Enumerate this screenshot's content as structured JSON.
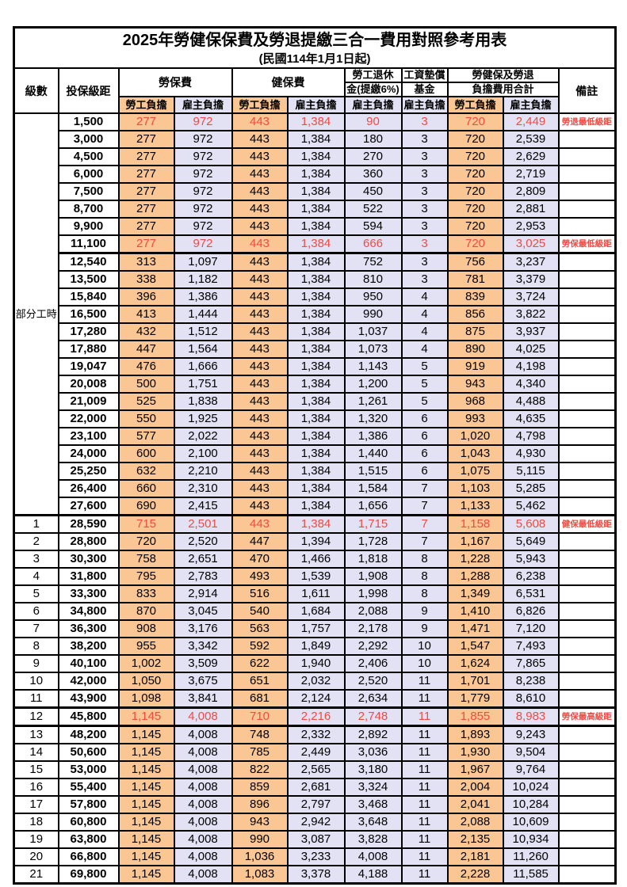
{
  "title": "2025年勞健保保費及勞退提繳三合一費用對照參考用表",
  "subtitle": "(民國114年1月1日起)",
  "header": {
    "level": "級數",
    "bracket": "投保級距",
    "labor": "勞保費",
    "health": "健保費",
    "pension_top": "勞工退休",
    "pension_bottom": "金(提繳6%)",
    "fund_top": "工資墊償",
    "fund_bottom": "基金",
    "total_top": "勞健保及勞退",
    "total_bottom": "負擔費用合計",
    "remark": "備註",
    "employee": "勞工負擔",
    "employer": "雇主負擔"
  },
  "part_time": {
    "label": "部分工時",
    "rowspan": 23
  },
  "colors": {
    "employee_bg": "#FAC693",
    "employer_bg": "#E2E2F4",
    "highlight_text": "#EE4B44",
    "border": "#000000"
  },
  "rows": [
    {
      "level": "",
      "bracket": "1,500",
      "li_emp": "277",
      "li_er": "972",
      "hi_emp": "443",
      "hi_er": "1,384",
      "pen": "90",
      "fund": "3",
      "tot_emp": "720",
      "tot_er": "2,449",
      "note": "勞退最低級距",
      "red": true
    },
    {
      "level": "",
      "bracket": "3,000",
      "li_emp": "277",
      "li_er": "972",
      "hi_emp": "443",
      "hi_er": "1,384",
      "pen": "180",
      "fund": "3",
      "tot_emp": "720",
      "tot_er": "2,539",
      "note": ""
    },
    {
      "level": "",
      "bracket": "4,500",
      "li_emp": "277",
      "li_er": "972",
      "hi_emp": "443",
      "hi_er": "1,384",
      "pen": "270",
      "fund": "3",
      "tot_emp": "720",
      "tot_er": "2,629",
      "note": ""
    },
    {
      "level": "",
      "bracket": "6,000",
      "li_emp": "277",
      "li_er": "972",
      "hi_emp": "443",
      "hi_er": "1,384",
      "pen": "360",
      "fund": "3",
      "tot_emp": "720",
      "tot_er": "2,719",
      "note": ""
    },
    {
      "level": "",
      "bracket": "7,500",
      "li_emp": "277",
      "li_er": "972",
      "hi_emp": "443",
      "hi_er": "1,384",
      "pen": "450",
      "fund": "3",
      "tot_emp": "720",
      "tot_er": "2,809",
      "note": ""
    },
    {
      "level": "",
      "bracket": "8,700",
      "li_emp": "277",
      "li_er": "972",
      "hi_emp": "443",
      "hi_er": "1,384",
      "pen": "522",
      "fund": "3",
      "tot_emp": "720",
      "tot_er": "2,881",
      "note": ""
    },
    {
      "level": "",
      "bracket": "9,900",
      "li_emp": "277",
      "li_er": "972",
      "hi_emp": "443",
      "hi_er": "1,384",
      "pen": "594",
      "fund": "3",
      "tot_emp": "720",
      "tot_er": "2,953",
      "note": ""
    },
    {
      "level": "",
      "bracket": "11,100",
      "li_emp": "277",
      "li_er": "972",
      "hi_emp": "443",
      "hi_er": "1,384",
      "pen": "666",
      "fund": "3",
      "tot_emp": "720",
      "tot_er": "3,025",
      "note": "勞保最低級距",
      "red": true,
      "bb": true
    },
    {
      "level": "",
      "bracket": "12,540",
      "li_emp": "313",
      "li_er": "1,097",
      "hi_emp": "443",
      "hi_er": "1,384",
      "pen": "752",
      "fund": "3",
      "tot_emp": "756",
      "tot_er": "3,237",
      "note": ""
    },
    {
      "level": "",
      "bracket": "13,500",
      "li_emp": "338",
      "li_er": "1,182",
      "hi_emp": "443",
      "hi_er": "1,384",
      "pen": "810",
      "fund": "3",
      "tot_emp": "781",
      "tot_er": "3,379",
      "note": ""
    },
    {
      "level": "",
      "bracket": "15,840",
      "li_emp": "396",
      "li_er": "1,386",
      "hi_emp": "443",
      "hi_er": "1,384",
      "pen": "950",
      "fund": "4",
      "tot_emp": "839",
      "tot_er": "3,724",
      "note": ""
    },
    {
      "level": "",
      "bracket": "16,500",
      "li_emp": "413",
      "li_er": "1,444",
      "hi_emp": "443",
      "hi_er": "1,384",
      "pen": "990",
      "fund": "4",
      "tot_emp": "856",
      "tot_er": "3,822",
      "note": ""
    },
    {
      "level": "",
      "bracket": "17,280",
      "li_emp": "432",
      "li_er": "1,512",
      "hi_emp": "443",
      "hi_er": "1,384",
      "pen": "1,037",
      "fund": "4",
      "tot_emp": "875",
      "tot_er": "3,937",
      "note": ""
    },
    {
      "level": "",
      "bracket": "17,880",
      "li_emp": "447",
      "li_er": "1,564",
      "hi_emp": "443",
      "hi_er": "1,384",
      "pen": "1,073",
      "fund": "4",
      "tot_emp": "890",
      "tot_er": "4,025",
      "note": ""
    },
    {
      "level": "",
      "bracket": "19,047",
      "li_emp": "476",
      "li_er": "1,666",
      "hi_emp": "443",
      "hi_er": "1,384",
      "pen": "1,143",
      "fund": "5",
      "tot_emp": "919",
      "tot_er": "4,198",
      "note": ""
    },
    {
      "level": "",
      "bracket": "20,008",
      "li_emp": "500",
      "li_er": "1,751",
      "hi_emp": "443",
      "hi_er": "1,384",
      "pen": "1,200",
      "fund": "5",
      "tot_emp": "943",
      "tot_er": "4,340",
      "note": ""
    },
    {
      "level": "",
      "bracket": "21,009",
      "li_emp": "525",
      "li_er": "1,838",
      "hi_emp": "443",
      "hi_er": "1,384",
      "pen": "1,261",
      "fund": "5",
      "tot_emp": "968",
      "tot_er": "4,488",
      "note": ""
    },
    {
      "level": "",
      "bracket": "22,000",
      "li_emp": "550",
      "li_er": "1,925",
      "hi_emp": "443",
      "hi_er": "1,384",
      "pen": "1,320",
      "fund": "6",
      "tot_emp": "993",
      "tot_er": "4,635",
      "note": ""
    },
    {
      "level": "",
      "bracket": "23,100",
      "li_emp": "577",
      "li_er": "2,022",
      "hi_emp": "443",
      "hi_er": "1,384",
      "pen": "1,386",
      "fund": "6",
      "tot_emp": "1,020",
      "tot_er": "4,798",
      "note": ""
    },
    {
      "level": "",
      "bracket": "24,000",
      "li_emp": "600",
      "li_er": "2,100",
      "hi_emp": "443",
      "hi_er": "1,384",
      "pen": "1,440",
      "fund": "6",
      "tot_emp": "1,043",
      "tot_er": "4,930",
      "note": ""
    },
    {
      "level": "",
      "bracket": "25,250",
      "li_emp": "632",
      "li_er": "2,210",
      "hi_emp": "443",
      "hi_er": "1,384",
      "pen": "1,515",
      "fund": "6",
      "tot_emp": "1,075",
      "tot_er": "5,115",
      "note": ""
    },
    {
      "level": "",
      "bracket": "26,400",
      "li_emp": "660",
      "li_er": "2,310",
      "hi_emp": "443",
      "hi_er": "1,384",
      "pen": "1,584",
      "fund": "7",
      "tot_emp": "1,103",
      "tot_er": "5,285",
      "note": ""
    },
    {
      "level": "",
      "bracket": "27,600",
      "li_emp": "690",
      "li_er": "2,415",
      "hi_emp": "443",
      "hi_er": "1,384",
      "pen": "1,656",
      "fund": "7",
      "tot_emp": "1,133",
      "tot_er": "5,462",
      "note": ""
    },
    {
      "level": "1",
      "bracket": "28,590",
      "li_emp": "715",
      "li_er": "2,501",
      "hi_emp": "443",
      "hi_er": "1,384",
      "pen": "1,715",
      "fund": "7",
      "tot_emp": "1,158",
      "tot_er": "5,608",
      "note": "健保最低級距",
      "red": true,
      "bt": true
    },
    {
      "level": "2",
      "bracket": "28,800",
      "li_emp": "720",
      "li_er": "2,520",
      "hi_emp": "447",
      "hi_er": "1,394",
      "pen": "1,728",
      "fund": "7",
      "tot_emp": "1,167",
      "tot_er": "5,649",
      "note": ""
    },
    {
      "level": "3",
      "bracket": "30,300",
      "li_emp": "758",
      "li_er": "2,651",
      "hi_emp": "470",
      "hi_er": "1,466",
      "pen": "1,818",
      "fund": "8",
      "tot_emp": "1,228",
      "tot_er": "5,943",
      "note": ""
    },
    {
      "level": "4",
      "bracket": "31,800",
      "li_emp": "795",
      "li_er": "2,783",
      "hi_emp": "493",
      "hi_er": "1,539",
      "pen": "1,908",
      "fund": "8",
      "tot_emp": "1,288",
      "tot_er": "6,238",
      "note": ""
    },
    {
      "level": "5",
      "bracket": "33,300",
      "li_emp": "833",
      "li_er": "2,914",
      "hi_emp": "516",
      "hi_er": "1,611",
      "pen": "1,998",
      "fund": "8",
      "tot_emp": "1,349",
      "tot_er": "6,531",
      "note": ""
    },
    {
      "level": "6",
      "bracket": "34,800",
      "li_emp": "870",
      "li_er": "3,045",
      "hi_emp": "540",
      "hi_er": "1,684",
      "pen": "2,088",
      "fund": "9",
      "tot_emp": "1,410",
      "tot_er": "6,826",
      "note": ""
    },
    {
      "level": "7",
      "bracket": "36,300",
      "li_emp": "908",
      "li_er": "3,176",
      "hi_emp": "563",
      "hi_er": "1,757",
      "pen": "2,178",
      "fund": "9",
      "tot_emp": "1,471",
      "tot_er": "7,120",
      "note": ""
    },
    {
      "level": "8",
      "bracket": "38,200",
      "li_emp": "955",
      "li_er": "3,342",
      "hi_emp": "592",
      "hi_er": "1,849",
      "pen": "2,292",
      "fund": "10",
      "tot_emp": "1,547",
      "tot_er": "7,493",
      "note": ""
    },
    {
      "level": "9",
      "bracket": "40,100",
      "li_emp": "1,002",
      "li_er": "3,509",
      "hi_emp": "622",
      "hi_er": "1,940",
      "pen": "2,406",
      "fund": "10",
      "tot_emp": "1,624",
      "tot_er": "7,865",
      "note": ""
    },
    {
      "level": "10",
      "bracket": "42,000",
      "li_emp": "1,050",
      "li_er": "3,675",
      "hi_emp": "651",
      "hi_er": "2,032",
      "pen": "2,520",
      "fund": "11",
      "tot_emp": "1,701",
      "tot_er": "8,238",
      "note": ""
    },
    {
      "level": "11",
      "bracket": "43,900",
      "li_emp": "1,098",
      "li_er": "3,841",
      "hi_emp": "681",
      "hi_er": "2,124",
      "pen": "2,634",
      "fund": "11",
      "tot_emp": "1,779",
      "tot_er": "8,610",
      "note": ""
    },
    {
      "level": "12",
      "bracket": "45,800",
      "li_emp": "1,145",
      "li_er": "4,008",
      "hi_emp": "710",
      "hi_er": "2,216",
      "pen": "2,748",
      "fund": "11",
      "tot_emp": "1,855",
      "tot_er": "8,983",
      "note": "勞保最高級距",
      "red": true,
      "bt": true,
      "bb": true
    },
    {
      "level": "13",
      "bracket": "48,200",
      "li_emp": "1,145",
      "li_er": "4,008",
      "hi_emp": "748",
      "hi_er": "2,332",
      "pen": "2,892",
      "fund": "11",
      "tot_emp": "1,893",
      "tot_er": "9,243",
      "note": ""
    },
    {
      "level": "14",
      "bracket": "50,600",
      "li_emp": "1,145",
      "li_er": "4,008",
      "hi_emp": "785",
      "hi_er": "2,449",
      "pen": "3,036",
      "fund": "11",
      "tot_emp": "1,930",
      "tot_er": "9,504",
      "note": ""
    },
    {
      "level": "15",
      "bracket": "53,000",
      "li_emp": "1,145",
      "li_er": "4,008",
      "hi_emp": "822",
      "hi_er": "2,565",
      "pen": "3,180",
      "fund": "11",
      "tot_emp": "1,967",
      "tot_er": "9,764",
      "note": ""
    },
    {
      "level": "16",
      "bracket": "55,400",
      "li_emp": "1,145",
      "li_er": "4,008",
      "hi_emp": "859",
      "hi_er": "2,681",
      "pen": "3,324",
      "fund": "11",
      "tot_emp": "2,004",
      "tot_er": "10,024",
      "note": ""
    },
    {
      "level": "17",
      "bracket": "57,800",
      "li_emp": "1,145",
      "li_er": "4,008",
      "hi_emp": "896",
      "hi_er": "2,797",
      "pen": "3,468",
      "fund": "11",
      "tot_emp": "2,041",
      "tot_er": "10,284",
      "note": ""
    },
    {
      "level": "18",
      "bracket": "60,800",
      "li_emp": "1,145",
      "li_er": "4,008",
      "hi_emp": "943",
      "hi_er": "2,942",
      "pen": "3,648",
      "fund": "11",
      "tot_emp": "2,088",
      "tot_er": "10,609",
      "note": ""
    },
    {
      "level": "19",
      "bracket": "63,800",
      "li_emp": "1,145",
      "li_er": "4,008",
      "hi_emp": "990",
      "hi_er": "3,087",
      "pen": "3,828",
      "fund": "11",
      "tot_emp": "2,135",
      "tot_er": "10,934",
      "note": ""
    },
    {
      "level": "20",
      "bracket": "66,800",
      "li_emp": "1,145",
      "li_er": "4,008",
      "hi_emp": "1,036",
      "hi_er": "3,233",
      "pen": "4,008",
      "fund": "11",
      "tot_emp": "2,181",
      "tot_er": "11,260",
      "note": ""
    },
    {
      "level": "21",
      "bracket": "69,800",
      "li_emp": "1,145",
      "li_er": "4,008",
      "hi_emp": "1,083",
      "hi_er": "3,378",
      "pen": "4,188",
      "fund": "11",
      "tot_emp": "2,228",
      "tot_er": "11,585",
      "note": ""
    }
  ]
}
